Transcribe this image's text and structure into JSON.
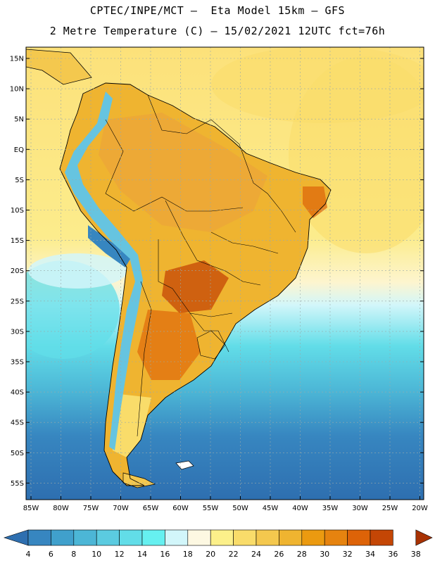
{
  "header": {
    "line1": "CPTEC/INPE/MCT –  Eta Model 15km – GFS",
    "line2": "2 Metre Temperature (C) – 15/02/2021 12UTC fct=76h"
  },
  "map": {
    "lat_labels": [
      "15N",
      "10N",
      "5N",
      "EQ",
      "5S",
      "10S",
      "15S",
      "20S",
      "25S",
      "30S",
      "35S",
      "40S",
      "45S",
      "50S",
      "55S"
    ],
    "lon_labels": [
      "85W",
      "80W",
      "75W",
      "70W",
      "65W",
      "60W",
      "55W",
      "50W",
      "45W",
      "40W",
      "35W",
      "30W",
      "25W",
      "20W"
    ]
  },
  "colorbar": {
    "labels": [
      "4",
      "6",
      "8",
      "10",
      "12",
      "14",
      "16",
      "18",
      "20",
      "22",
      "24",
      "26",
      "28",
      "30",
      "32",
      "34",
      "36",
      "38"
    ],
    "colors": [
      "#2e6fb0",
      "#3786c0",
      "#40a0cc",
      "#4cb6d6",
      "#5bcbe0",
      "#62dde8",
      "#66f0f0",
      "#d2f6fa",
      "#fdf8e2",
      "#fcf08a",
      "#f9dc6a",
      "#f4c84e",
      "#efb430",
      "#eb9a10",
      "#e6830f",
      "#dd6308",
      "#c44605",
      "#a83203"
    ]
  },
  "colors": {
    "ocean_warm": "#fcea85",
    "ocean_mid": "#fdf8e2",
    "ocean_cool": "#5bcbe0",
    "ocean_cold": "#2e6fb0",
    "land_hot": "#efb430",
    "land_very_hot": "#dd6308",
    "andes": "#66c4e0"
  }
}
